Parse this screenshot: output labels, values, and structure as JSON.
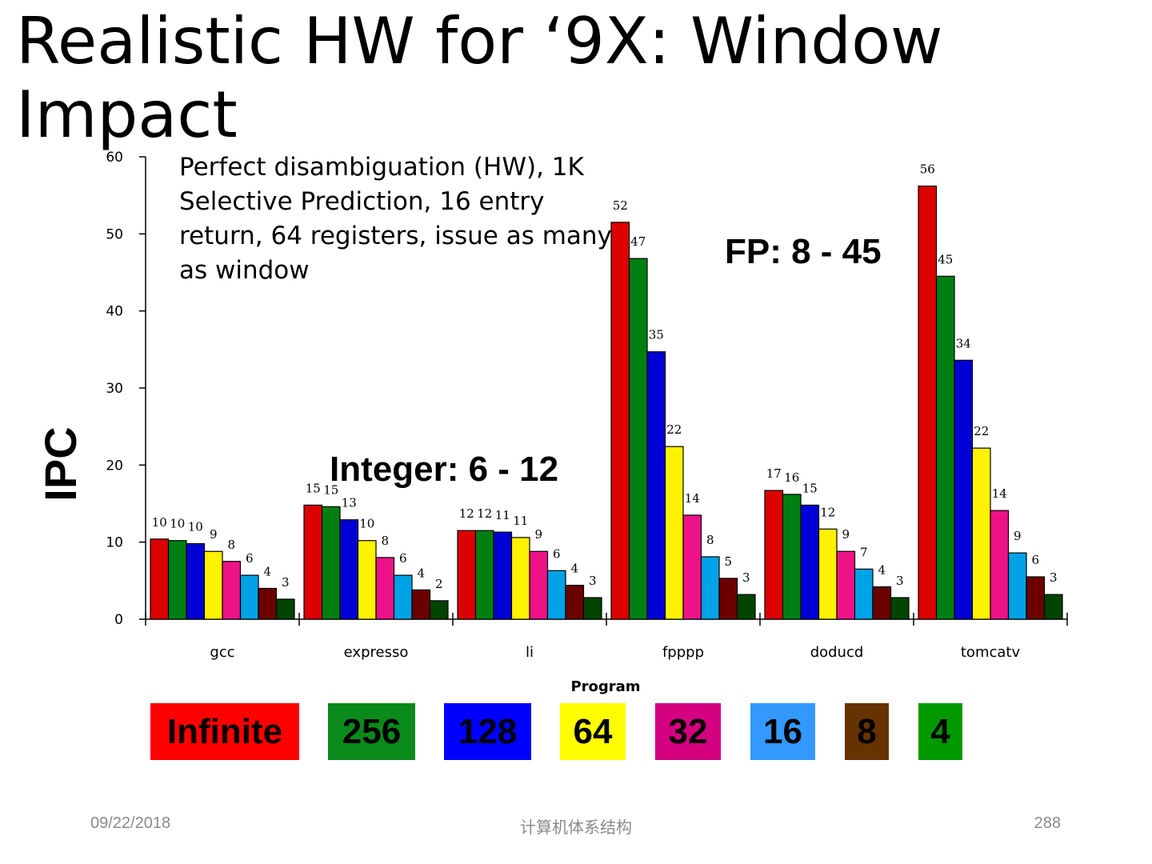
{
  "slide": {
    "title": "Realistic HW for ‘9X: Window Impact",
    "annotation": "Perfect disambiguation (HW), 1K Selective Prediction, 16 entry return, 64 registers, issue as many as window",
    "callout_integer": "Integer: 6 - 12",
    "callout_fp": "FP: 8 - 45"
  },
  "chart_data": {
    "type": "bar",
    "title": "",
    "xlabel": "Program",
    "ylabel": "IPC",
    "ylim": [
      0,
      60
    ],
    "yticks": [
      "0",
      "10",
      "20",
      "30",
      "40",
      "50",
      "60"
    ],
    "grid": false,
    "legend_position": "bottom",
    "categories": [
      "gcc",
      "expresso",
      "li",
      "fpppp",
      "doducd",
      "tomcatv"
    ],
    "series": [
      {
        "name": "Infinite",
        "color": "#dd0000",
        "values": [
          10.4,
          14.8,
          11.5,
          51.5,
          16.7,
          56.2
        ],
        "labels": [
          "10",
          "15",
          "12",
          "52",
          "17",
          "56"
        ]
      },
      {
        "name": "256",
        "color": "#007f11",
        "values": [
          10.2,
          14.6,
          11.5,
          46.8,
          16.2,
          44.5
        ],
        "labels": [
          "10",
          "15",
          "12",
          "47",
          "16",
          "45"
        ]
      },
      {
        "name": "128",
        "color": "#0000d6",
        "values": [
          9.8,
          12.9,
          11.3,
          34.7,
          14.8,
          33.6
        ],
        "labels": [
          "10",
          "13",
          "11",
          "35",
          "15",
          "34"
        ]
      },
      {
        "name": "64",
        "color": "#fff200",
        "values": [
          8.8,
          10.2,
          10.6,
          22.4,
          11.7,
          22.2
        ],
        "labels": [
          "9",
          "10",
          "11",
          "22",
          "12",
          "22"
        ]
      },
      {
        "name": "32",
        "color": "#ee1289",
        "values": [
          7.5,
          8.0,
          8.8,
          13.5,
          8.8,
          14.1
        ],
        "labels": [
          "8",
          "8",
          "9",
          "14",
          "9",
          "14"
        ]
      },
      {
        "name": "16",
        "color": "#00a2e8",
        "values": [
          5.7,
          5.7,
          6.3,
          8.1,
          6.5,
          8.6
        ],
        "labels": [
          "6",
          "6",
          "6",
          "8",
          "7",
          "9"
        ]
      },
      {
        "name": "8",
        "color": "#6b0000",
        "values": [
          4.0,
          3.8,
          4.4,
          5.3,
          4.2,
          5.5
        ],
        "labels": [
          "4",
          "4",
          "4",
          "5",
          "4",
          "6"
        ]
      },
      {
        "name": "4",
        "color": "#004400",
        "values": [
          2.6,
          2.4,
          2.8,
          3.2,
          2.8,
          3.2
        ],
        "labels": [
          "3",
          "2",
          "3",
          "3",
          "3",
          "3"
        ]
      }
    ]
  },
  "legend": {
    "items": [
      {
        "label": "Infinite",
        "color": "#ff0000"
      },
      {
        "label": "256",
        "color": "#0a8a1a"
      },
      {
        "label": "128",
        "color": "#0000ff"
      },
      {
        "label": "64",
        "color": "#ffff00"
      },
      {
        "label": "32",
        "color": "#d40080"
      },
      {
        "label": "16",
        "color": "#3399ff"
      },
      {
        "label": "8",
        "color": "#663300"
      },
      {
        "label": "4",
        "color": "#009900"
      }
    ]
  },
  "footer": {
    "date": "09/22/2018",
    "center": "计算机体系结构",
    "page": "288"
  }
}
